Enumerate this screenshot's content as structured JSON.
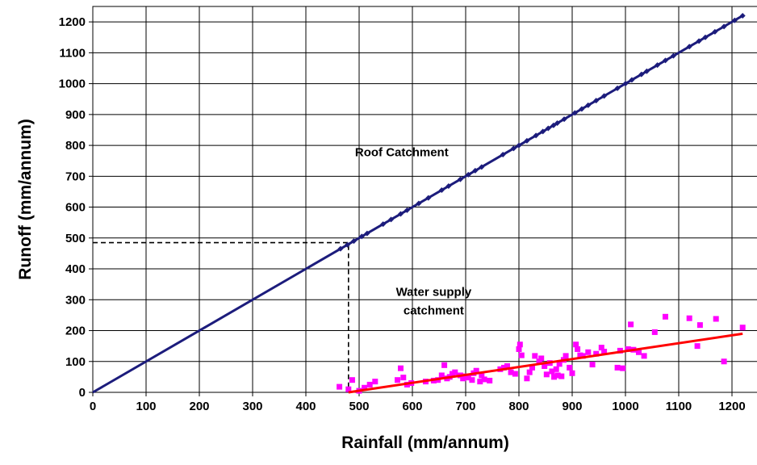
{
  "chart_data": {
    "type": "scatter",
    "xlabel": "Rainfall (mm/annum)",
    "ylabel": "Runoff (mm/annum)",
    "xlim": [
      0,
      1250
    ],
    "ylim": [
      0,
      1250
    ],
    "xticks": [
      0,
      100,
      200,
      300,
      400,
      500,
      600,
      700,
      800,
      900,
      1000,
      1100,
      1200
    ],
    "yticks": [
      0,
      100,
      200,
      300,
      400,
      500,
      600,
      700,
      800,
      900,
      1000,
      1100,
      1200
    ],
    "grid": true,
    "legend": false,
    "annotations": [
      {
        "text": "Roof Catchment",
        "x": 580,
        "y": 765
      },
      {
        "text": "Water supply",
        "x": 640,
        "y": 312
      },
      {
        "text": "catchment",
        "x": 640,
        "y": 253
      }
    ],
    "reference_lines": [
      {
        "style": "dashed",
        "color": "#000000",
        "points": [
          [
            0,
            485
          ],
          [
            480,
            485
          ],
          [
            480,
            0
          ]
        ]
      }
    ],
    "series": [
      {
        "label": "Roof Catchment",
        "kind": "line",
        "color": "#1c1c7c",
        "x": [
          0,
          1220
        ],
        "y": [
          0,
          1220
        ],
        "marker_points": [
          [
            465,
            465
          ],
          [
            478,
            478
          ],
          [
            490,
            490
          ],
          [
            505,
            505
          ],
          [
            515,
            515
          ],
          [
            545,
            545
          ],
          [
            560,
            560
          ],
          [
            578,
            578
          ],
          [
            590,
            590
          ],
          [
            612,
            612
          ],
          [
            630,
            630
          ],
          [
            655,
            655
          ],
          [
            668,
            668
          ],
          [
            690,
            690
          ],
          [
            705,
            705
          ],
          [
            718,
            718
          ],
          [
            730,
            730
          ],
          [
            770,
            770
          ],
          [
            790,
            790
          ],
          [
            800,
            800
          ],
          [
            815,
            815
          ],
          [
            832,
            832
          ],
          [
            845,
            845
          ],
          [
            855,
            855
          ],
          [
            865,
            865
          ],
          [
            872,
            872
          ],
          [
            885,
            885
          ],
          [
            905,
            905
          ],
          [
            918,
            918
          ],
          [
            930,
            930
          ],
          [
            945,
            945
          ],
          [
            960,
            960
          ],
          [
            985,
            985
          ],
          [
            1000,
            1000
          ],
          [
            1012,
            1012
          ],
          [
            1030,
            1030
          ],
          [
            1040,
            1040
          ],
          [
            1060,
            1060
          ],
          [
            1075,
            1075
          ],
          [
            1090,
            1090
          ],
          [
            1120,
            1120
          ],
          [
            1138,
            1138
          ],
          [
            1150,
            1150
          ],
          [
            1168,
            1168
          ],
          [
            1185,
            1185
          ],
          [
            1205,
            1205
          ],
          [
            1220,
            1220
          ]
        ]
      },
      {
        "label": "Water supply catchment",
        "kind": "scatter",
        "color": "#ff00ff",
        "x": [
          463,
          480,
          487,
          500,
          510,
          520,
          530,
          572,
          578,
          583,
          590,
          598,
          625,
          640,
          648,
          655,
          660,
          665,
          670,
          675,
          680,
          690,
          695,
          700,
          705,
          712,
          715,
          720,
          727,
          730,
          735,
          745,
          765,
          772,
          778,
          785,
          793,
          800,
          802,
          805,
          815,
          820,
          825,
          830,
          838,
          842,
          848,
          852,
          858,
          862,
          866,
          870,
          873,
          876,
          880,
          884,
          888,
          895,
          900,
          907,
          910,
          915,
          920,
          930,
          938,
          945,
          955,
          960,
          985,
          990,
          995,
          1005,
          1010,
          1015,
          1025,
          1035,
          1055,
          1075,
          1120,
          1135,
          1140,
          1170,
          1185,
          1220
        ],
        "y": [
          18,
          10,
          40,
          5,
          15,
          25,
          35,
          40,
          78,
          48,
          25,
          30,
          35,
          38,
          40,
          55,
          88,
          45,
          50,
          60,
          65,
          55,
          45,
          52,
          48,
          40,
          62,
          70,
          35,
          55,
          42,
          38,
          75,
          80,
          85,
          65,
          60,
          140,
          155,
          120,
          45,
          65,
          80,
          118,
          100,
          110,
          85,
          58,
          95,
          68,
          50,
          75,
          55,
          92,
          52,
          105,
          118,
          80,
          62,
          155,
          140,
          120,
          118,
          130,
          90,
          125,
          145,
          132,
          80,
          135,
          78,
          140,
          220,
          138,
          130,
          118,
          195,
          245,
          240,
          150,
          218,
          238,
          100,
          210
        ]
      },
      {
        "label": "Water supply trend",
        "kind": "line",
        "color": "#ff0000",
        "x": [
          480,
          1220
        ],
        "y": [
          0,
          190
        ]
      }
    ]
  }
}
